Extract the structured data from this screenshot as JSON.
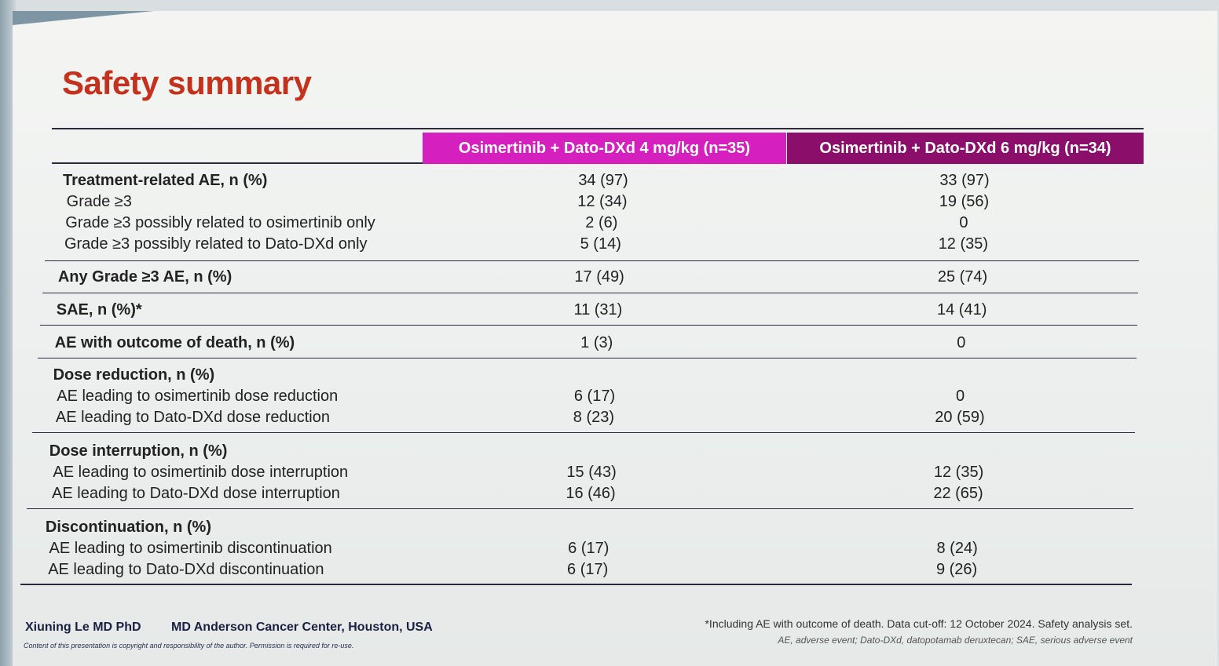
{
  "title": "Safety summary",
  "colors": {
    "title": "#c4311c",
    "header1": "#d61fbf",
    "header2": "#8b0f6a"
  },
  "table": {
    "headers": [
      "Osimertinib + Dato-DXd 4 mg/kg (n=35)",
      "Osimertinib + Dato-DXd 6 mg/kg (n=34)"
    ],
    "groups": [
      {
        "rows": [
          {
            "label": "Treatment-related AE, n (%)",
            "bold": true,
            "v1": "34 (97)",
            "v2": "33 (97)"
          },
          {
            "label": "Grade ≥3",
            "bold": false,
            "v1": "12 (34)",
            "v2": "19 (56)"
          },
          {
            "label": "Grade ≥3 possibly related to osimertinib only",
            "bold": false,
            "v1": "2 (6)",
            "v2": "0"
          },
          {
            "label": "Grade ≥3 possibly related to Dato-DXd only",
            "bold": false,
            "v1": "5 (14)",
            "v2": "12 (35)"
          }
        ]
      },
      {
        "rows": [
          {
            "label": "Any Grade ≥3 AE, n (%)",
            "bold": true,
            "v1": "17 (49)",
            "v2": "25 (74)"
          }
        ]
      },
      {
        "rows": [
          {
            "label": "SAE, n (%)*",
            "bold": true,
            "v1": "11 (31)",
            "v2": "14 (41)"
          }
        ]
      },
      {
        "rows": [
          {
            "label": "AE with outcome of death, n (%)",
            "bold": true,
            "v1": "1 (3)",
            "v2": "0"
          }
        ]
      },
      {
        "rows": [
          {
            "label": "Dose reduction, n (%)",
            "bold": true,
            "v1": "",
            "v2": ""
          },
          {
            "label": "AE leading to osimertinib dose reduction",
            "bold": false,
            "v1": "6 (17)",
            "v2": "0"
          },
          {
            "label": "AE leading to Dato-DXd dose reduction",
            "bold": false,
            "v1": "8 (23)",
            "v2": "20 (59)"
          }
        ]
      },
      {
        "rows": [
          {
            "label": "Dose interruption, n (%)",
            "bold": true,
            "v1": "",
            "v2": ""
          },
          {
            "label": "AE leading to osimertinib dose interruption",
            "bold": false,
            "v1": "15 (43)",
            "v2": "12 (35)"
          },
          {
            "label": "AE leading to Dato-DXd dose interruption",
            "bold": false,
            "v1": "16 (46)",
            "v2": "22 (65)"
          }
        ]
      },
      {
        "rows": [
          {
            "label": "Discontinuation, n (%)",
            "bold": true,
            "v1": "",
            "v2": ""
          },
          {
            "label": "AE leading to osimertinib discontinuation",
            "bold": false,
            "v1": "6 (17)",
            "v2": "8 (24)"
          },
          {
            "label": "AE leading to Dato-DXd discontinuation",
            "bold": false,
            "v1": "6 (17)",
            "v2": "9 (26)"
          }
        ]
      }
    ]
  },
  "footer": {
    "author": "Xiuning Le MD PhD",
    "institution": "MD Anderson Cancer Center, Houston, USA",
    "copyright": "Content of this presentation is copyright and responsibility of the author. Permission is required for re-use.",
    "note1": "*Including AE with outcome of death. Data cut-off: 12 October 2024. Safety analysis set.",
    "note2": "AE, adverse event; Dato-DXd, datopotamab deruxtecan; SAE, serious adverse event"
  }
}
